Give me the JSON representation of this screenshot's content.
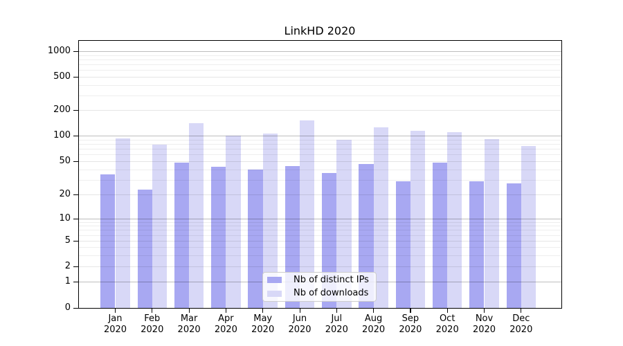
{
  "title": "LinkHD 2020",
  "chart_data": {
    "type": "bar",
    "title": "LinkHD 2020",
    "x_axis": {
      "months": [
        "Jan",
        "Feb",
        "Mar",
        "Apr",
        "May",
        "Jun",
        "Jul",
        "Aug",
        "Sep",
        "Oct",
        "Nov",
        "Dec"
      ],
      "year": "2020"
    },
    "y_axis": {
      "scale": "symlog",
      "ticks": [
        0,
        1,
        2,
        5,
        10,
        20,
        50,
        100,
        200,
        500,
        1000
      ],
      "ylim": [
        0,
        1400
      ]
    },
    "series": [
      {
        "key": "distinct-ips",
        "name": "Nb of distinct IPs",
        "color": "#a8a8f2",
        "values": [
          35,
          23,
          48,
          43,
          40,
          44,
          36,
          46,
          29,
          48,
          29,
          27
        ]
      },
      {
        "key": "downloads",
        "name": "Nb of downloads",
        "color": "#d8d8f7",
        "values": [
          93,
          78,
          140,
          100,
          105,
          150,
          90,
          125,
          115,
          110,
          91,
          76
        ]
      }
    ],
    "grid": "on",
    "legend_position": "lower center"
  }
}
